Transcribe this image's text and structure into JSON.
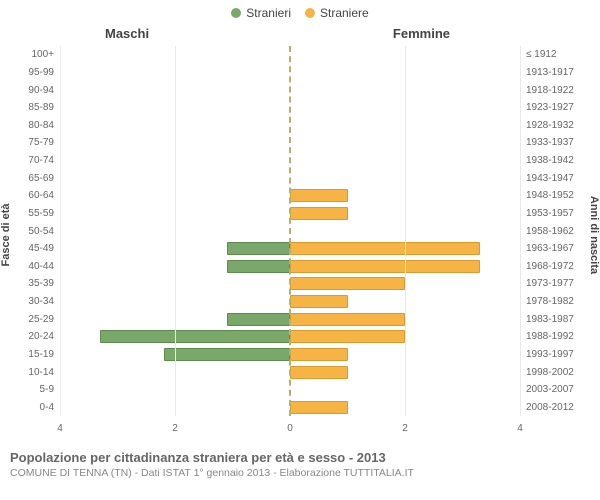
{
  "legend": {
    "male": {
      "label": "Stranieri",
      "color": "#7aa76a",
      "border": "#5e8a4f"
    },
    "female": {
      "label": "Straniere",
      "color": "#f6b445",
      "border": "#d99a2f"
    }
  },
  "side_titles": {
    "left": "Maschi",
    "right": "Femmine"
  },
  "axis_titles": {
    "left": "Fasce di età",
    "right": "Anni di nascita"
  },
  "x_axis": {
    "max": 4,
    "ticks": [
      4,
      2,
      0,
      2,
      4
    ],
    "grid_color": "#e9e9e9",
    "center_color": "#b7b06b"
  },
  "colors": {
    "male_fill": "#7aa76a",
    "male_border": "#5e8a4f",
    "female_fill": "#f6b445",
    "female_border": "#d99a2f"
  },
  "rows": [
    {
      "age": "100+",
      "birth": "≤ 1912",
      "m": 0,
      "f": 0
    },
    {
      "age": "95-99",
      "birth": "1913-1917",
      "m": 0,
      "f": 0
    },
    {
      "age": "90-94",
      "birth": "1918-1922",
      "m": 0,
      "f": 0
    },
    {
      "age": "85-89",
      "birth": "1923-1927",
      "m": 0,
      "f": 0
    },
    {
      "age": "80-84",
      "birth": "1928-1932",
      "m": 0,
      "f": 0
    },
    {
      "age": "75-79",
      "birth": "1933-1937",
      "m": 0,
      "f": 0
    },
    {
      "age": "70-74",
      "birth": "1938-1942",
      "m": 0,
      "f": 0
    },
    {
      "age": "65-69",
      "birth": "1943-1947",
      "m": 0,
      "f": 0
    },
    {
      "age": "60-64",
      "birth": "1948-1952",
      "m": 0,
      "f": 1
    },
    {
      "age": "55-59",
      "birth": "1953-1957",
      "m": 0,
      "f": 1
    },
    {
      "age": "50-54",
      "birth": "1958-1962",
      "m": 0,
      "f": 0
    },
    {
      "age": "45-49",
      "birth": "1963-1967",
      "m": 1.1,
      "f": 3.3
    },
    {
      "age": "40-44",
      "birth": "1968-1972",
      "m": 1.1,
      "f": 3.3
    },
    {
      "age": "35-39",
      "birth": "1973-1977",
      "m": 0,
      "f": 2
    },
    {
      "age": "30-34",
      "birth": "1978-1982",
      "m": 0,
      "f": 1
    },
    {
      "age": "25-29",
      "birth": "1983-1987",
      "m": 1.1,
      "f": 2
    },
    {
      "age": "20-24",
      "birth": "1988-1992",
      "m": 3.3,
      "f": 2
    },
    {
      "age": "15-19",
      "birth": "1993-1997",
      "m": 2.2,
      "f": 1
    },
    {
      "age": "10-14",
      "birth": "1998-2002",
      "m": 0,
      "f": 1
    },
    {
      "age": "5-9",
      "birth": "2003-2007",
      "m": 0,
      "f": 0
    },
    {
      "age": "0-4",
      "birth": "2008-2012",
      "m": 0,
      "f": 1
    }
  ],
  "footer": {
    "line1": "Popolazione per cittadinanza straniera per età e sesso - 2013",
    "line2": "COMUNE DI TENNA (TN) - Dati ISTAT 1° gennaio 2013 - Elaborazione TUTTITALIA.IT"
  }
}
